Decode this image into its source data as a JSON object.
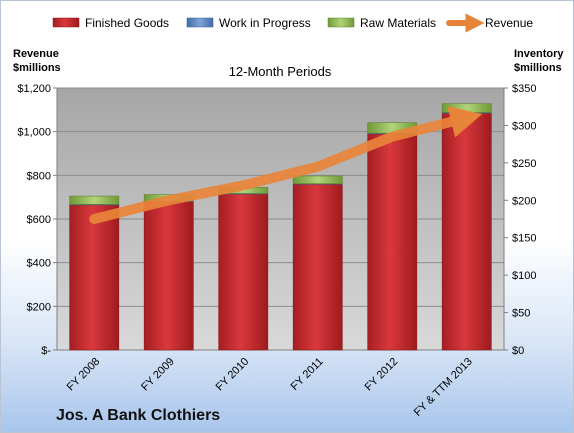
{
  "chart_data": {
    "type": "bar",
    "title": "12-Month Periods",
    "footer": "Jos. A Bank Clothiers",
    "categories": [
      "FY 2008",
      "FY 2009",
      "FY 2010",
      "FY 2011",
      "FY 2012",
      "FY & TTM 2013"
    ],
    "series": [
      {
        "name": "Finished Goods",
        "kind": "stacked-bar",
        "axis": "left",
        "color": "#c0282c",
        "values": [
          665,
          680,
          715,
          760,
          990,
          1085
        ]
      },
      {
        "name": "Work in Progress",
        "kind": "stacked-bar",
        "axis": "left",
        "color": "#4f81bd",
        "values": [
          2,
          2,
          2,
          2,
          3,
          3
        ]
      },
      {
        "name": "Raw Materials",
        "kind": "stacked-bar",
        "axis": "left",
        "color": "#8db34a",
        "values": [
          38,
          30,
          28,
          35,
          48,
          40
        ]
      },
      {
        "name": "Revenue",
        "kind": "line",
        "axis": "right",
        "color": "#e8843a",
        "values": [
          175,
          200,
          220,
          245,
          285,
          310
        ]
      }
    ],
    "y_left": {
      "label_line1": "Revenue",
      "label_line2": "$millions",
      "range": [
        0,
        1200
      ],
      "ticks": [
        0,
        200,
        400,
        600,
        800,
        1000,
        1200
      ],
      "tick_labels": [
        "$-",
        "$200",
        "$400",
        "$600",
        "$800",
        "$1,000",
        "$1,200"
      ]
    },
    "y_right": {
      "label_line1": "Inventory",
      "label_line2": "$millions",
      "range": [
        0,
        350
      ],
      "ticks": [
        0,
        50,
        100,
        150,
        200,
        250,
        300,
        350
      ],
      "tick_labels": [
        "$0",
        "$50",
        "$100",
        "$150",
        "$200",
        "$250",
        "$300",
        "$350"
      ]
    },
    "grid": true,
    "legend_position": "top"
  }
}
